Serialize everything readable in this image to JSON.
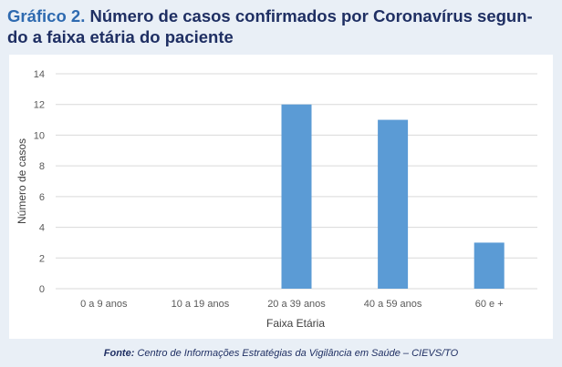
{
  "title": {
    "prefix": "Gráfico 2.",
    "line1": "Número de casos confirmados por Coronavírus segun-",
    "line2": "do a faixa etária do paciente"
  },
  "source": {
    "label": "Fonte:",
    "text": "Centro de Informações Estratégias da Vigilância em Saúde – CIEVS/TO"
  },
  "colors": {
    "bar": "#5b9bd5",
    "title_prefix": "#2e6ab0",
    "title": "#1f2f63",
    "panel_bg": "#e9eff6",
    "plot_bg": "#ffffff",
    "gridline": "#d9d9d9",
    "tick_text": "#595959"
  },
  "chart_data": {
    "type": "bar",
    "categories": [
      "0 a 9 anos",
      "10 a 19 anos",
      "20 a 39 anos",
      "40 a 59 anos",
      "60 e +"
    ],
    "values": [
      0,
      0,
      12,
      11,
      3
    ],
    "xlabel": "Faixa Etária",
    "ylabel": "Número de casos",
    "ylim": [
      0,
      14
    ],
    "yticks": [
      0,
      2,
      4,
      6,
      8,
      10,
      12,
      14
    ],
    "grid": true,
    "legend": "none"
  }
}
